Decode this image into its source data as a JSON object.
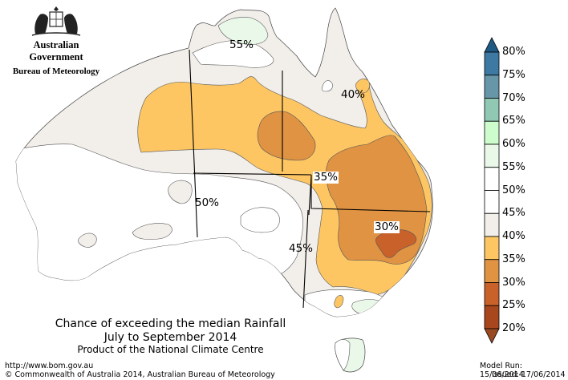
{
  "header": {
    "government": "Australian Government",
    "bureau": "Bureau of Meteorology"
  },
  "map_labels": {
    "l55": "55%",
    "l40": "40%",
    "l35": "35%",
    "l50": "50%",
    "l30": "30%",
    "l45": "45%"
  },
  "caption": {
    "line1": "Chance of exceeding the median Rainfall",
    "line2": "July to September 2014",
    "line3": "Product of the National Climate Centre"
  },
  "footer": {
    "url": "http://www.bom.gov.au",
    "copyright": "©  Commonwealth of Australia 2014, Australian Bureau of Meteorology",
    "model_run": "Model Run: 15/06/2014",
    "issued": "Issued: 17/06/2014"
  },
  "legend": {
    "labels": [
      "80%",
      "75%",
      "70%",
      "65%",
      "60%",
      "55%",
      "50%",
      "45%",
      "40%",
      "35%",
      "30%",
      "25%",
      "20%"
    ],
    "colors": [
      "#3d79a3",
      "#6796a8",
      "#90c8b4",
      "#cdfccd",
      "#e9f8e9",
      "#ffffff",
      "#ffffff",
      "#f2eeea",
      "#fdc663",
      "#df9343",
      "#c9622a",
      "#a8461e"
    ],
    "top_arrow_color": "#1f5a85",
    "bottom_arrow_color": "#9a4a21"
  },
  "map_colors": {
    "ocean": "#ffffff",
    "band_45": "#f2eeea",
    "band_40": "#fdc663",
    "band_35": "#df9343",
    "band_30": "#c9622a",
    "band_55_60": "#e9f8e9"
  }
}
